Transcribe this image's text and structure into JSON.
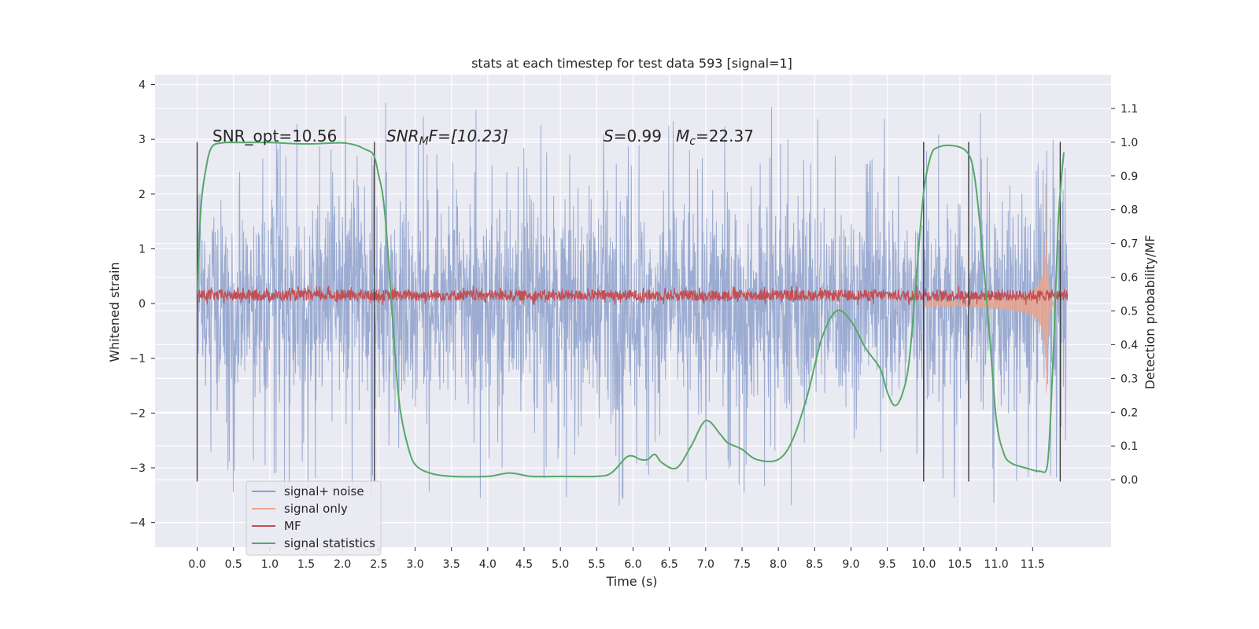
{
  "chart_data": {
    "type": "line",
    "title": "stats at each timestep for test data 593 [signal=1]",
    "xlabel": "Time (s)",
    "ylabel_left": "Whitened strain",
    "ylabel_right": "Detection probability/MF",
    "xlim": [
      -0.58,
      12.58
    ],
    "ylim_left": [
      -4.45,
      4.18
    ],
    "ylim_right": [
      -0.2,
      1.2
    ],
    "x_ticks": [
      "0.0",
      "0.5",
      "1.0",
      "1.5",
      "2.0",
      "2.5",
      "3.0",
      "3.5",
      "4.0",
      "4.5",
      "5.0",
      "5.5",
      "6.0",
      "6.5",
      "7.0",
      "7.5",
      "8.0",
      "8.5",
      "9.0",
      "9.5",
      "10.0",
      "10.5",
      "11.0",
      "11.5"
    ],
    "y_ticks_left": [
      "4",
      "3",
      "2",
      "1",
      "0",
      "−1",
      "−2",
      "−3",
      "−4"
    ],
    "y_ticks_right": [
      "1.1",
      "1.0",
      "0.9",
      "0.8",
      "0.7",
      "0.6",
      "0.5",
      "0.4",
      "0.3",
      "0.2",
      "0.1",
      "0.0"
    ],
    "grid": true,
    "legend_position": "lower-left",
    "annotations": {
      "snr_opt": "SNR_opt=10.56",
      "snr_mf_label": "SNR",
      "snr_mf_sub": "M",
      "snr_mf_value": "F=[10.23]",
      "s_label": "S",
      "s_value": "=0.99",
      "mc_label": "M",
      "mc_sub": "c",
      "mc_value": "=22.37"
    },
    "series": [
      {
        "name": "signal+ noise",
        "color": "#8da0cb",
        "axis": "left",
        "kind": "noise",
        "x_range": [
          0.0,
          11.98
        ],
        "envelope_typical": 2.0,
        "envelope_peak": 3.8
      },
      {
        "name": "signal only",
        "color": "#e8a58c",
        "axis": "left",
        "kind": "chirp",
        "x_range": [
          10.0,
          11.98
        ],
        "peak_x": 11.68,
        "peak_amplitude": 2.4
      },
      {
        "name": "MF",
        "color": "#c44e52",
        "axis": "left",
        "kind": "noise",
        "x_range": [
          0.0,
          11.98
        ],
        "baseline": 0.15,
        "band": 0.2
      },
      {
        "name": "signal statistics",
        "color": "#55a868",
        "axis": "right",
        "x": [
          0.0,
          0.05,
          0.12,
          0.2,
          0.35,
          0.6,
          1.0,
          1.5,
          2.0,
          2.2,
          2.3,
          2.4,
          2.45,
          2.5,
          2.55,
          2.6,
          2.65,
          2.7,
          2.75,
          2.8,
          2.9,
          3.0,
          3.2,
          3.5,
          4.0,
          4.3,
          4.6,
          5.0,
          5.5,
          5.7,
          5.9,
          6.0,
          6.1,
          6.2,
          6.3,
          6.4,
          6.6,
          6.8,
          7.0,
          7.2,
          7.3,
          7.5,
          7.7,
          8.0,
          8.2,
          8.4,
          8.6,
          8.8,
          9.0,
          9.2,
          9.4,
          9.5,
          9.6,
          9.7,
          9.8,
          9.9,
          10.0,
          10.1,
          10.2,
          10.4,
          10.6,
          10.7,
          10.8,
          10.9,
          11.0,
          11.1,
          11.2,
          11.4,
          11.6,
          11.7,
          11.75,
          11.8,
          11.85,
          11.9,
          11.93
        ],
        "y": [
          0.55,
          0.8,
          0.92,
          0.985,
          0.998,
          0.999,
          0.999,
          0.995,
          0.998,
          0.99,
          0.98,
          0.97,
          0.95,
          0.9,
          0.85,
          0.75,
          0.6,
          0.45,
          0.3,
          0.2,
          0.1,
          0.045,
          0.02,
          0.01,
          0.01,
          0.02,
          0.01,
          0.01,
          0.01,
          0.02,
          0.065,
          0.07,
          0.06,
          0.06,
          0.075,
          0.05,
          0.035,
          0.1,
          0.175,
          0.135,
          0.11,
          0.09,
          0.06,
          0.06,
          0.12,
          0.25,
          0.42,
          0.5,
          0.47,
          0.39,
          0.33,
          0.26,
          0.22,
          0.25,
          0.35,
          0.6,
          0.85,
          0.96,
          0.985,
          0.99,
          0.97,
          0.9,
          0.7,
          0.45,
          0.18,
          0.08,
          0.05,
          0.035,
          0.025,
          0.04,
          0.2,
          0.45,
          0.75,
          0.9,
          0.97
        ]
      }
    ],
    "vertical_markers": [
      0.0,
      2.44,
      10.0,
      10.62,
      11.88
    ],
    "vertical_markers_range": [
      -3.25,
      2.95
    ]
  }
}
